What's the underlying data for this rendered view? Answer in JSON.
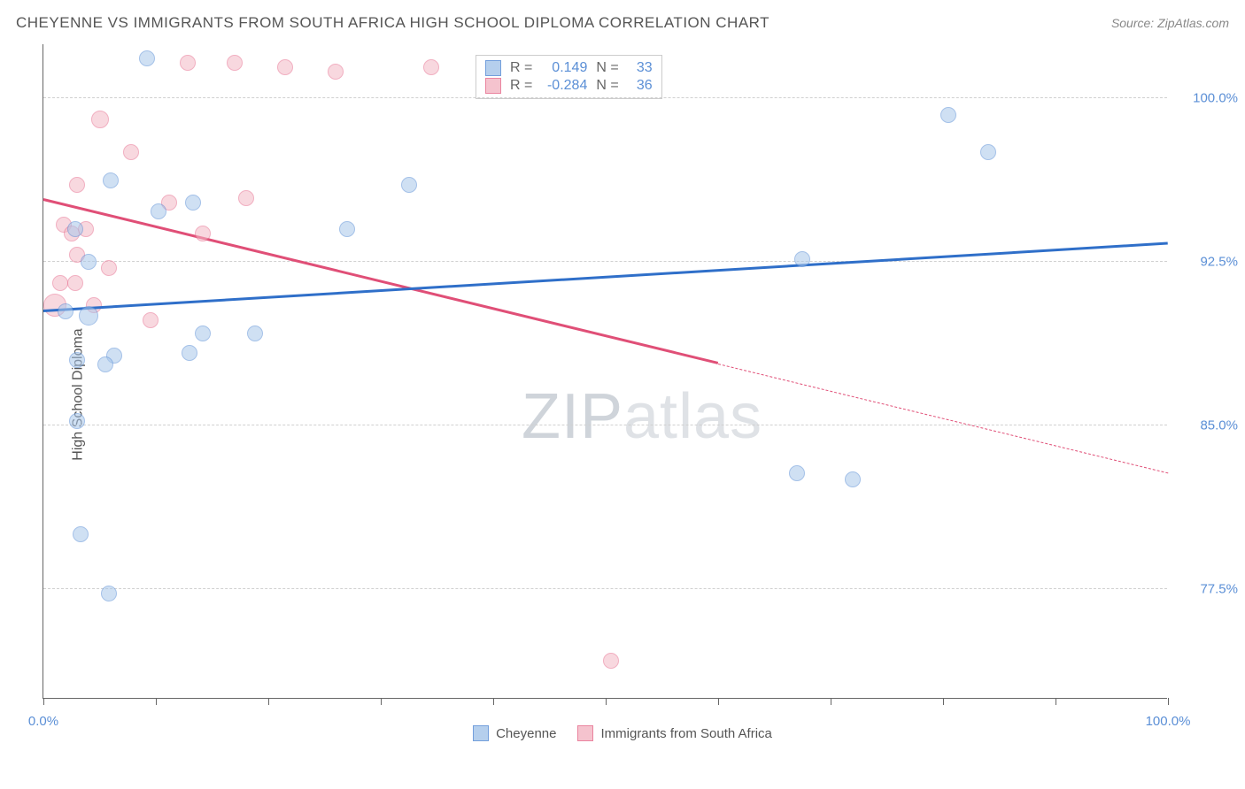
{
  "header": {
    "title": "CHEYENNE VS IMMIGRANTS FROM SOUTH AFRICA HIGH SCHOOL DIPLOMA CORRELATION CHART",
    "source_prefix": "Source: ",
    "source_name": "ZipAtlas.com"
  },
  "y_axis_label": "High School Diploma",
  "watermark": {
    "zip": "ZIP",
    "atlas": "atlas"
  },
  "chart": {
    "type": "scatter",
    "background_color": "#ffffff",
    "grid_color": "#d0d0d0",
    "axis_color": "#666666",
    "xlim": [
      0,
      100
    ],
    "ylim": [
      72.5,
      102.5
    ],
    "x_ticks": [
      0,
      10,
      20,
      30,
      40,
      50,
      60,
      70,
      80,
      90,
      100
    ],
    "x_tick_labels": {
      "0": "0.0%",
      "100": "100.0%"
    },
    "y_ticks": [
      77.5,
      85.0,
      92.5,
      100.0
    ],
    "y_tick_labels": [
      "77.5%",
      "85.0%",
      "92.5%",
      "100.0%"
    ],
    "series": [
      {
        "name": "Cheyenne",
        "fill": "#a9c7ea",
        "stroke": "#5b8fd6",
        "fill_opacity": 0.55,
        "marker_radius": 9,
        "R": "0.149",
        "N": "33",
        "trend": {
          "x1": 0,
          "y1": 90.2,
          "x2": 100,
          "y2": 93.3,
          "color": "#2f6fc9",
          "dash_from_x": null
        },
        "points": [
          {
            "x": 9.2,
            "y": 101.8,
            "r": 9
          },
          {
            "x": 80.5,
            "y": 99.2,
            "r": 9
          },
          {
            "x": 84.0,
            "y": 97.5,
            "r": 9
          },
          {
            "x": 6.0,
            "y": 96.2,
            "r": 9
          },
          {
            "x": 10.2,
            "y": 94.8,
            "r": 9
          },
          {
            "x": 13.3,
            "y": 95.2,
            "r": 9
          },
          {
            "x": 32.5,
            "y": 96.0,
            "r": 9
          },
          {
            "x": 2.8,
            "y": 94.0,
            "r": 9
          },
          {
            "x": 27.0,
            "y": 94.0,
            "r": 9
          },
          {
            "x": 4.0,
            "y": 92.5,
            "r": 9
          },
          {
            "x": 67.5,
            "y": 92.6,
            "r": 9
          },
          {
            "x": 2.0,
            "y": 90.2,
            "r": 9
          },
          {
            "x": 4.0,
            "y": 90.0,
            "r": 11
          },
          {
            "x": 14.2,
            "y": 89.2,
            "r": 9
          },
          {
            "x": 18.8,
            "y": 89.2,
            "r": 9
          },
          {
            "x": 3.0,
            "y": 88.0,
            "r": 9
          },
          {
            "x": 6.3,
            "y": 88.2,
            "r": 9
          },
          {
            "x": 13.0,
            "y": 88.3,
            "r": 9
          },
          {
            "x": 5.5,
            "y": 87.8,
            "r": 9
          },
          {
            "x": 3.0,
            "y": 85.2,
            "r": 9
          },
          {
            "x": 67.0,
            "y": 82.8,
            "r": 9
          },
          {
            "x": 72.0,
            "y": 82.5,
            "r": 9
          },
          {
            "x": 3.3,
            "y": 80.0,
            "r": 9
          },
          {
            "x": 5.8,
            "y": 77.3,
            "r": 9
          }
        ]
      },
      {
        "name": "Immigrants from South Africa",
        "fill": "#f4b9c6",
        "stroke": "#e76f8f",
        "fill_opacity": 0.55,
        "marker_radius": 9,
        "R": "-0.284",
        "N": "36",
        "trend": {
          "x1": 0,
          "y1": 95.3,
          "x2": 100,
          "y2": 82.8,
          "color": "#e04f77",
          "dash_from_x": 60
        },
        "points": [
          {
            "x": 12.8,
            "y": 101.6,
            "r": 9
          },
          {
            "x": 17.0,
            "y": 101.6,
            "r": 9
          },
          {
            "x": 21.5,
            "y": 101.4,
            "r": 9
          },
          {
            "x": 26.0,
            "y": 101.2,
            "r": 9
          },
          {
            "x": 34.5,
            "y": 101.4,
            "r": 9
          },
          {
            "x": 5.0,
            "y": 99.0,
            "r": 10
          },
          {
            "x": 7.8,
            "y": 97.5,
            "r": 9
          },
          {
            "x": 3.0,
            "y": 96.0,
            "r": 9
          },
          {
            "x": 18.0,
            "y": 95.4,
            "r": 9
          },
          {
            "x": 11.2,
            "y": 95.2,
            "r": 9
          },
          {
            "x": 1.8,
            "y": 94.2,
            "r": 9
          },
          {
            "x": 3.8,
            "y": 94.0,
            "r": 9
          },
          {
            "x": 2.5,
            "y": 93.8,
            "r": 9
          },
          {
            "x": 14.2,
            "y": 93.8,
            "r": 9
          },
          {
            "x": 3.0,
            "y": 92.8,
            "r": 9
          },
          {
            "x": 5.8,
            "y": 92.2,
            "r": 9
          },
          {
            "x": 1.5,
            "y": 91.5,
            "r": 9
          },
          {
            "x": 2.8,
            "y": 91.5,
            "r": 9
          },
          {
            "x": 1.0,
            "y": 90.5,
            "r": 13
          },
          {
            "x": 4.5,
            "y": 90.5,
            "r": 9
          },
          {
            "x": 9.5,
            "y": 89.8,
            "r": 9
          },
          {
            "x": 50.5,
            "y": 74.2,
            "r": 9
          }
        ]
      }
    ]
  },
  "stats_box": {
    "R_label": "R =",
    "N_label": "N ="
  },
  "legend": {
    "series1_label": "Cheyenne",
    "series2_label": "Immigrants from South Africa"
  }
}
